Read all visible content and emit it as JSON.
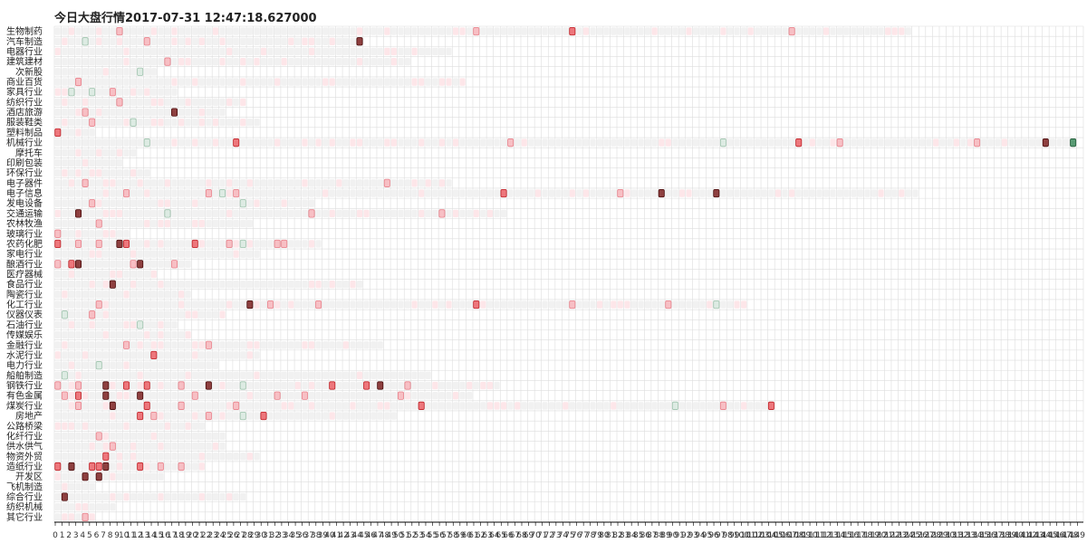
{
  "chart_data": {
    "type": "heatmap",
    "title": "今日大盘行情2017-07-31 12:47:18.627000",
    "y_categories": [
      "生物制药",
      "汽车制造",
      "电器行业",
      "建筑建材",
      "次新股",
      "商业百货",
      "家具行业",
      "纺织行业",
      "酒店旅游",
      "服装鞋类",
      "塑料制品",
      "机械行业",
      "摩托车",
      "印刷包装",
      "环保行业",
      "电子器件",
      "电子信息",
      "发电设备",
      "交通运输",
      "农林牧渔",
      "玻璃行业",
      "农药化肥",
      "家电行业",
      "酿酒行业",
      "医疗器械",
      "食品行业",
      "陶瓷行业",
      "化工行业",
      "仪器仪表",
      "石油行业",
      "传媒娱乐",
      "金融行业",
      "水泥行业",
      "电力行业",
      "船舶制造",
      "钢铁行业",
      "有色金属",
      "煤炭行业",
      "房地产",
      "公路桥梁",
      "化纤行业",
      "供水供气",
      "物资外贸",
      "造纸行业",
      "开发区",
      "飞机制造",
      "综合行业",
      "纺织机械",
      "其它行业"
    ],
    "x_range": [
      0,
      149
    ],
    "row_lengths": [
      125,
      45,
      58,
      52,
      15,
      60,
      18,
      28,
      25,
      30,
      6,
      149,
      12,
      10,
      14,
      58,
      126,
      38,
      66,
      29,
      11,
      39,
      30,
      20,
      15,
      45,
      20,
      101,
      25,
      18,
      20,
      48,
      30,
      24,
      55,
      65,
      61,
      105,
      50,
      22,
      25,
      25,
      30,
      22,
      16,
      6,
      28,
      9,
      6
    ],
    "levels": {
      "strong_up": "#7a1e1e",
      "up_high": "#e8555b",
      "up_mid": "#f4aab0",
      "up_low": "#fde3e7",
      "flat": "#efefef",
      "down_low": "#d4e6dc",
      "down_strong": "#3c8a5c",
      "grid": "#dddddd"
    },
    "cells": [
      [
        0,
        9,
        "up_mid"
      ],
      [
        0,
        17,
        "up_low"
      ],
      [
        0,
        48,
        "up_low"
      ],
      [
        0,
        61,
        "up_mid"
      ],
      [
        0,
        75,
        "up_high"
      ],
      [
        0,
        77,
        "up_low"
      ],
      [
        0,
        92,
        "up_low"
      ],
      [
        0,
        107,
        "up_mid"
      ],
      [
        1,
        1,
        "up_low"
      ],
      [
        1,
        4,
        "down_low"
      ],
      [
        1,
        13,
        "up_mid"
      ],
      [
        1,
        44,
        "strong_up"
      ],
      [
        1,
        75,
        "up_high"
      ],
      [
        1,
        82,
        "down_low"
      ],
      [
        2,
        0,
        "up_low"
      ],
      [
        2,
        10,
        "up_low"
      ],
      [
        2,
        30,
        "up_low"
      ],
      [
        2,
        48,
        "up_low"
      ],
      [
        3,
        16,
        "up_mid"
      ],
      [
        3,
        27,
        "up_low"
      ],
      [
        3,
        44,
        "up_low"
      ],
      [
        3,
        54,
        "up_mid"
      ],
      [
        3,
        67,
        "up_low"
      ],
      [
        3,
        76,
        "up_mid"
      ],
      [
        4,
        7,
        "up_low"
      ],
      [
        4,
        12,
        "down_low"
      ],
      [
        5,
        3,
        "up_mid"
      ],
      [
        5,
        20,
        "up_low"
      ],
      [
        5,
        40,
        "up_low"
      ],
      [
        5,
        57,
        "up_low"
      ],
      [
        5,
        64,
        "strong_up"
      ],
      [
        5,
        68,
        "up_mid"
      ],
      [
        5,
        76,
        "up_mid"
      ],
      [
        5,
        83,
        "up_mid"
      ],
      [
        6,
        0,
        "up_low"
      ],
      [
        6,
        2,
        "down_low"
      ],
      [
        6,
        5,
        "down_low"
      ],
      [
        6,
        8,
        "up_mid"
      ],
      [
        6,
        13,
        "up_low"
      ],
      [
        7,
        9,
        "up_mid"
      ],
      [
        7,
        14,
        "up_low"
      ],
      [
        8,
        4,
        "up_mid"
      ],
      [
        8,
        17,
        "strong_up"
      ],
      [
        8,
        25,
        "up_mid"
      ],
      [
        8,
        21,
        "up_low"
      ],
      [
        9,
        5,
        "up_mid"
      ],
      [
        9,
        11,
        "down_low"
      ],
      [
        9,
        14,
        "up_low"
      ],
      [
        9,
        21,
        "up_low"
      ],
      [
        10,
        0,
        "up_high"
      ],
      [
        10,
        8,
        "down_low"
      ],
      [
        11,
        13,
        "down_low"
      ],
      [
        11,
        26,
        "up_high"
      ],
      [
        11,
        32,
        "up_low"
      ],
      [
        11,
        40,
        "up_low"
      ],
      [
        11,
        66,
        "up_mid"
      ],
      [
        11,
        88,
        "up_low"
      ],
      [
        11,
        97,
        "down_low"
      ],
      [
        11,
        108,
        "up_high"
      ],
      [
        11,
        114,
        "up_mid"
      ],
      [
        11,
        134,
        "up_mid"
      ],
      [
        11,
        144,
        "strong_up"
      ],
      [
        11,
        148,
        "down_strong"
      ],
      [
        12,
        6,
        "up_low"
      ],
      [
        12,
        9,
        "up_low"
      ],
      [
        13,
        4,
        "up_low"
      ],
      [
        14,
        1,
        "up_low"
      ],
      [
        14,
        3,
        "up_low"
      ],
      [
        15,
        4,
        "up_mid"
      ],
      [
        15,
        8,
        "up_low"
      ],
      [
        15,
        12,
        "up_low"
      ],
      [
        15,
        28,
        "up_low"
      ],
      [
        15,
        48,
        "up_mid"
      ],
      [
        15,
        89,
        "up_mid"
      ],
      [
        16,
        7,
        "up_low"
      ],
      [
        16,
        10,
        "up_mid"
      ],
      [
        16,
        22,
        "up_mid"
      ],
      [
        16,
        24,
        "down_low"
      ],
      [
        16,
        26,
        "up_mid"
      ],
      [
        16,
        39,
        "up_low"
      ],
      [
        16,
        65,
        "up_high"
      ],
      [
        16,
        82,
        "up_mid"
      ],
      [
        16,
        88,
        "strong_up"
      ],
      [
        16,
        92,
        "up_low"
      ],
      [
        16,
        96,
        "strong_up"
      ],
      [
        16,
        105,
        "up_low"
      ],
      [
        16,
        126,
        "up_high"
      ],
      [
        17,
        5,
        "up_mid"
      ],
      [
        17,
        15,
        "up_low"
      ],
      [
        17,
        20,
        "up_low"
      ],
      [
        17,
        27,
        "down_low"
      ],
      [
        17,
        44,
        "up_low"
      ],
      [
        18,
        3,
        "strong_up"
      ],
      [
        18,
        9,
        "up_low"
      ],
      [
        18,
        16,
        "down_low"
      ],
      [
        18,
        37,
        "up_mid"
      ],
      [
        18,
        56,
        "up_mid"
      ],
      [
        18,
        70,
        "down_low"
      ],
      [
        19,
        6,
        "up_mid"
      ],
      [
        19,
        13,
        "up_low"
      ],
      [
        19,
        29,
        "strong_up"
      ],
      [
        19,
        30,
        "up_high"
      ],
      [
        19,
        40,
        "down_low"
      ],
      [
        20,
        0,
        "up_mid"
      ],
      [
        20,
        3,
        "up_low"
      ],
      [
        20,
        7,
        "up_low"
      ],
      [
        21,
        0,
        "up_high"
      ],
      [
        21,
        3,
        "up_mid"
      ],
      [
        21,
        6,
        "up_mid"
      ],
      [
        21,
        9,
        "strong_up"
      ],
      [
        21,
        10,
        "up_high"
      ],
      [
        21,
        20,
        "up_high"
      ],
      [
        21,
        25,
        "up_mid"
      ],
      [
        21,
        27,
        "down_low"
      ],
      [
        21,
        32,
        "up_mid"
      ],
      [
        21,
        33,
        "up_mid"
      ],
      [
        22,
        5,
        "up_low"
      ],
      [
        22,
        31,
        "up_high"
      ],
      [
        23,
        0,
        "up_mid"
      ],
      [
        23,
        2,
        "up_high"
      ],
      [
        23,
        3,
        "strong_up"
      ],
      [
        23,
        11,
        "up_mid"
      ],
      [
        23,
        12,
        "strong_up"
      ],
      [
        23,
        17,
        "up_mid"
      ],
      [
        23,
        24,
        "strong_up"
      ],
      [
        23,
        27,
        "up_mid"
      ],
      [
        23,
        29,
        "up_high"
      ],
      [
        24,
        8,
        "up_low"
      ],
      [
        25,
        8,
        "strong_up"
      ],
      [
        25,
        15,
        "up_low"
      ],
      [
        26,
        1,
        "up_low"
      ],
      [
        27,
        6,
        "up_mid"
      ],
      [
        27,
        28,
        "strong_up"
      ],
      [
        27,
        31,
        "up_mid"
      ],
      [
        27,
        38,
        "up_mid"
      ],
      [
        27,
        61,
        "up_high"
      ],
      [
        27,
        75,
        "up_mid"
      ],
      [
        27,
        82,
        "up_low"
      ],
      [
        27,
        89,
        "up_mid"
      ],
      [
        27,
        96,
        "down_low"
      ],
      [
        28,
        1,
        "down_low"
      ],
      [
        28,
        5,
        "up_mid"
      ],
      [
        28,
        19,
        "up_low"
      ],
      [
        29,
        12,
        "down_low"
      ],
      [
        30,
        7,
        "up_low"
      ],
      [
        30,
        15,
        "up_low"
      ],
      [
        31,
        1,
        "up_low"
      ],
      [
        31,
        10,
        "up_mid"
      ],
      [
        31,
        22,
        "up_mid"
      ],
      [
        31,
        29,
        "up_low"
      ],
      [
        31,
        42,
        "up_low"
      ],
      [
        32,
        0,
        "up_low"
      ],
      [
        32,
        14,
        "up_high"
      ],
      [
        32,
        20,
        "up_low"
      ],
      [
        33,
        2,
        "up_low"
      ],
      [
        33,
        6,
        "down_low"
      ],
      [
        34,
        1,
        "down_low"
      ],
      [
        34,
        3,
        "up_low"
      ],
      [
        34,
        12,
        "up_low"
      ],
      [
        35,
        0,
        "up_mid"
      ],
      [
        35,
        3,
        "up_mid"
      ],
      [
        35,
        7,
        "strong_up"
      ],
      [
        35,
        10,
        "up_high"
      ],
      [
        35,
        13,
        "up_high"
      ],
      [
        35,
        18,
        "up_mid"
      ],
      [
        35,
        22,
        "strong_up"
      ],
      [
        35,
        27,
        "down_low"
      ],
      [
        35,
        40,
        "up_high"
      ],
      [
        35,
        45,
        "up_high"
      ],
      [
        35,
        47,
        "strong_up"
      ],
      [
        35,
        51,
        "up_mid"
      ],
      [
        35,
        60,
        "up_low"
      ],
      [
        36,
        1,
        "up_mid"
      ],
      [
        36,
        3,
        "up_high"
      ],
      [
        36,
        7,
        "strong_up"
      ],
      [
        36,
        12,
        "strong_up"
      ],
      [
        36,
        20,
        "up_mid"
      ],
      [
        36,
        32,
        "up_mid"
      ],
      [
        36,
        36,
        "up_mid"
      ],
      [
        36,
        50,
        "up_mid"
      ],
      [
        36,
        58,
        "up_low"
      ],
      [
        37,
        3,
        "up_mid"
      ],
      [
        37,
        8,
        "strong_up"
      ],
      [
        37,
        13,
        "up_high"
      ],
      [
        37,
        18,
        "up_mid"
      ],
      [
        37,
        26,
        "up_mid"
      ],
      [
        37,
        34,
        "up_low"
      ],
      [
        37,
        48,
        "up_low"
      ],
      [
        37,
        53,
        "up_high"
      ],
      [
        37,
        90,
        "down_low"
      ],
      [
        37,
        97,
        "up_mid"
      ],
      [
        37,
        104,
        "up_high"
      ],
      [
        38,
        12,
        "up_high"
      ],
      [
        38,
        14,
        "up_mid"
      ],
      [
        38,
        22,
        "up_mid"
      ],
      [
        38,
        27,
        "down_low"
      ],
      [
        38,
        30,
        "up_high"
      ],
      [
        39,
        1,
        "up_low"
      ],
      [
        39,
        4,
        "up_low"
      ],
      [
        40,
        6,
        "up_mid"
      ],
      [
        40,
        14,
        "up_low"
      ],
      [
        41,
        5,
        "up_low"
      ],
      [
        41,
        8,
        "up_mid"
      ],
      [
        42,
        7,
        "up_high"
      ],
      [
        42,
        11,
        "up_low"
      ],
      [
        43,
        0,
        "up_high"
      ],
      [
        43,
        2,
        "strong_up"
      ],
      [
        43,
        5,
        "up_high"
      ],
      [
        43,
        6,
        "up_high"
      ],
      [
        43,
        7,
        "strong_up"
      ],
      [
        43,
        12,
        "up_high"
      ],
      [
        43,
        15,
        "up_mid"
      ],
      [
        43,
        18,
        "up_mid"
      ],
      [
        44,
        4,
        "strong_up"
      ],
      [
        44,
        6,
        "strong_up"
      ],
      [
        44,
        8,
        "up_low"
      ],
      [
        45,
        1,
        "up_low"
      ],
      [
        46,
        1,
        "strong_up"
      ],
      [
        46,
        8,
        "up_low"
      ],
      [
        47,
        4,
        "up_low"
      ],
      [
        48,
        4,
        "up_mid"
      ],
      [
        48,
        5,
        "up_low"
      ]
    ],
    "x_tick_labels": [
      "0",
      "1",
      "2",
      "3",
      "4",
      "5",
      "6",
      "7",
      "8",
      "9",
      "10",
      "11",
      "12",
      "13",
      "14",
      "15",
      "16",
      "17",
      "18",
      "19",
      "20",
      "21",
      "22",
      "23",
      "24",
      "25",
      "26",
      "27",
      "28",
      "29",
      "30",
      "31",
      "32",
      "33",
      "34",
      "35",
      "36",
      "37",
      "38",
      "39",
      "40",
      "41",
      "42",
      "43",
      "44",
      "45",
      "46",
      "47",
      "48",
      "49",
      "50",
      "51",
      "52",
      "53",
      "54",
      "55",
      "56",
      "57",
      "58",
      "59",
      "60",
      "61",
      "62",
      "63",
      "64",
      "65",
      "66",
      "67",
      "68",
      "69",
      "70",
      "71",
      "72",
      "73",
      "74",
      "75",
      "76",
      "77",
      "78",
      "79",
      "80",
      "81",
      "82",
      "83",
      "84",
      "85",
      "86",
      "87",
      "88",
      "89",
      "90",
      "91",
      "92",
      "93",
      "94",
      "95",
      "96",
      "97",
      "98",
      "99",
      "100",
      "101",
      "102",
      "103",
      "104",
      "105",
      "106",
      "107",
      "108",
      "109",
      "110",
      "111",
      "112",
      "113",
      "114",
      "115",
      "116",
      "117",
      "118",
      "119",
      "120",
      "121",
      "122",
      "123",
      "124",
      "125",
      "126",
      "127",
      "128",
      "129",
      "130",
      "131",
      "132",
      "133",
      "134",
      "135",
      "136",
      "137",
      "138",
      "139",
      "140",
      "141",
      "142",
      "143",
      "144",
      "145",
      "146",
      "147",
      "148",
      "149"
    ],
    "grid": true,
    "legend": "none"
  }
}
